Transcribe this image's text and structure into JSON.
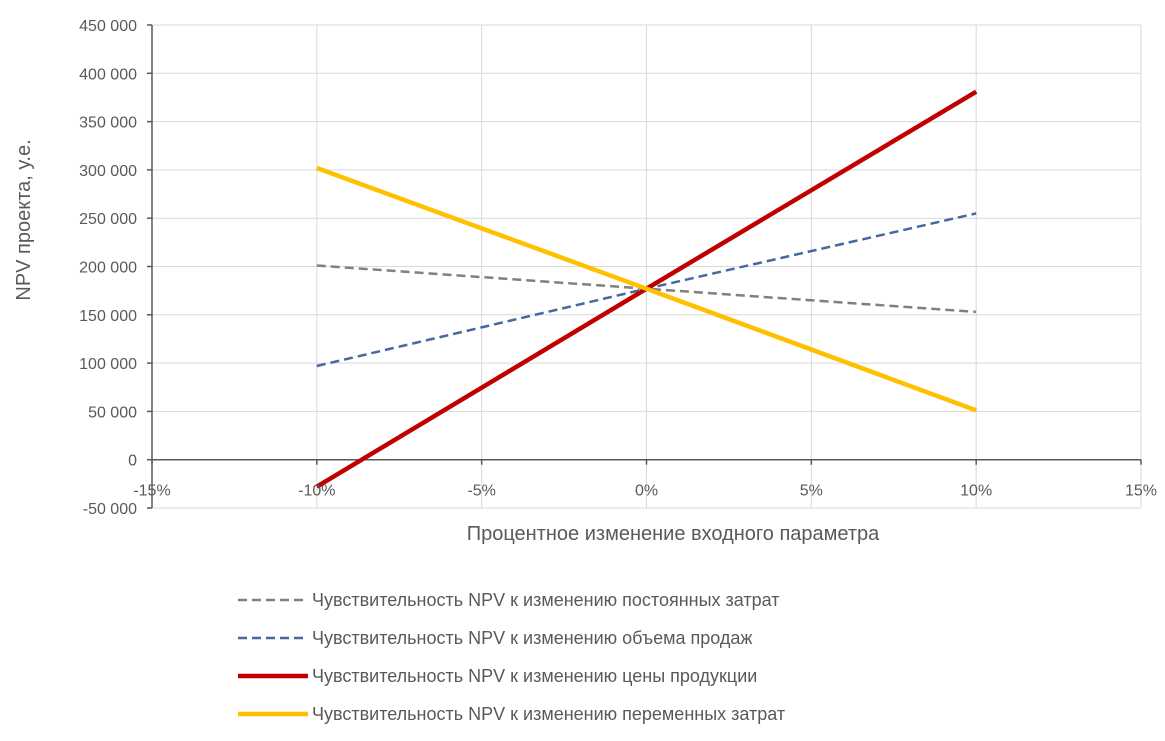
{
  "chart_data": {
    "type": "line",
    "title": "",
    "xlabel": "Процентное изменение входного параметра",
    "ylabel": "NPV проекта, у.е.",
    "xlim": [
      -15,
      15
    ],
    "ylim": [
      -50000,
      450000
    ],
    "x_ticks": [
      -15,
      -10,
      -5,
      0,
      5,
      10,
      15
    ],
    "x_tick_labels": [
      "-15%",
      "-10%",
      "-5%",
      "0%",
      "5%",
      "10%",
      "15%"
    ],
    "y_ticks": [
      -50000,
      0,
      50000,
      100000,
      150000,
      200000,
      250000,
      300000,
      350000,
      400000,
      450000
    ],
    "y_tick_labels": [
      "-50 000",
      "0",
      "50 000",
      "100 000",
      "150 000",
      "200 000",
      "250 000",
      "300 000",
      "350 000",
      "400 000",
      "450 000"
    ],
    "grid": true,
    "legend_position": "bottom",
    "series": [
      {
        "name": "Чувствительность NPV к изменению постоянных затрат",
        "color": "#808080",
        "dash": "dashed",
        "width": "thin",
        "x": [
          -10,
          0,
          10
        ],
        "y": [
          201000,
          177000,
          153000
        ]
      },
      {
        "name": "Чувствительность NPV к изменению объема продаж",
        "color": "#44699d",
        "dash": "dashed",
        "width": "thin",
        "x": [
          -10,
          0,
          10
        ],
        "y": [
          97000,
          177000,
          255000
        ]
      },
      {
        "name": "Чувствительность NPV к изменению цены продукции",
        "color": "#c00000",
        "dash": "solid",
        "width": "thick",
        "x": [
          -10,
          0,
          10
        ],
        "y": [
          -28000,
          177000,
          381000
        ]
      },
      {
        "name": "Чувствительность NPV к изменению переменных затрат",
        "color": "#ffc000",
        "dash": "solid",
        "width": "thick",
        "x": [
          -10,
          0,
          10
        ],
        "y": [
          302000,
          177000,
          51000
        ]
      }
    ]
  }
}
